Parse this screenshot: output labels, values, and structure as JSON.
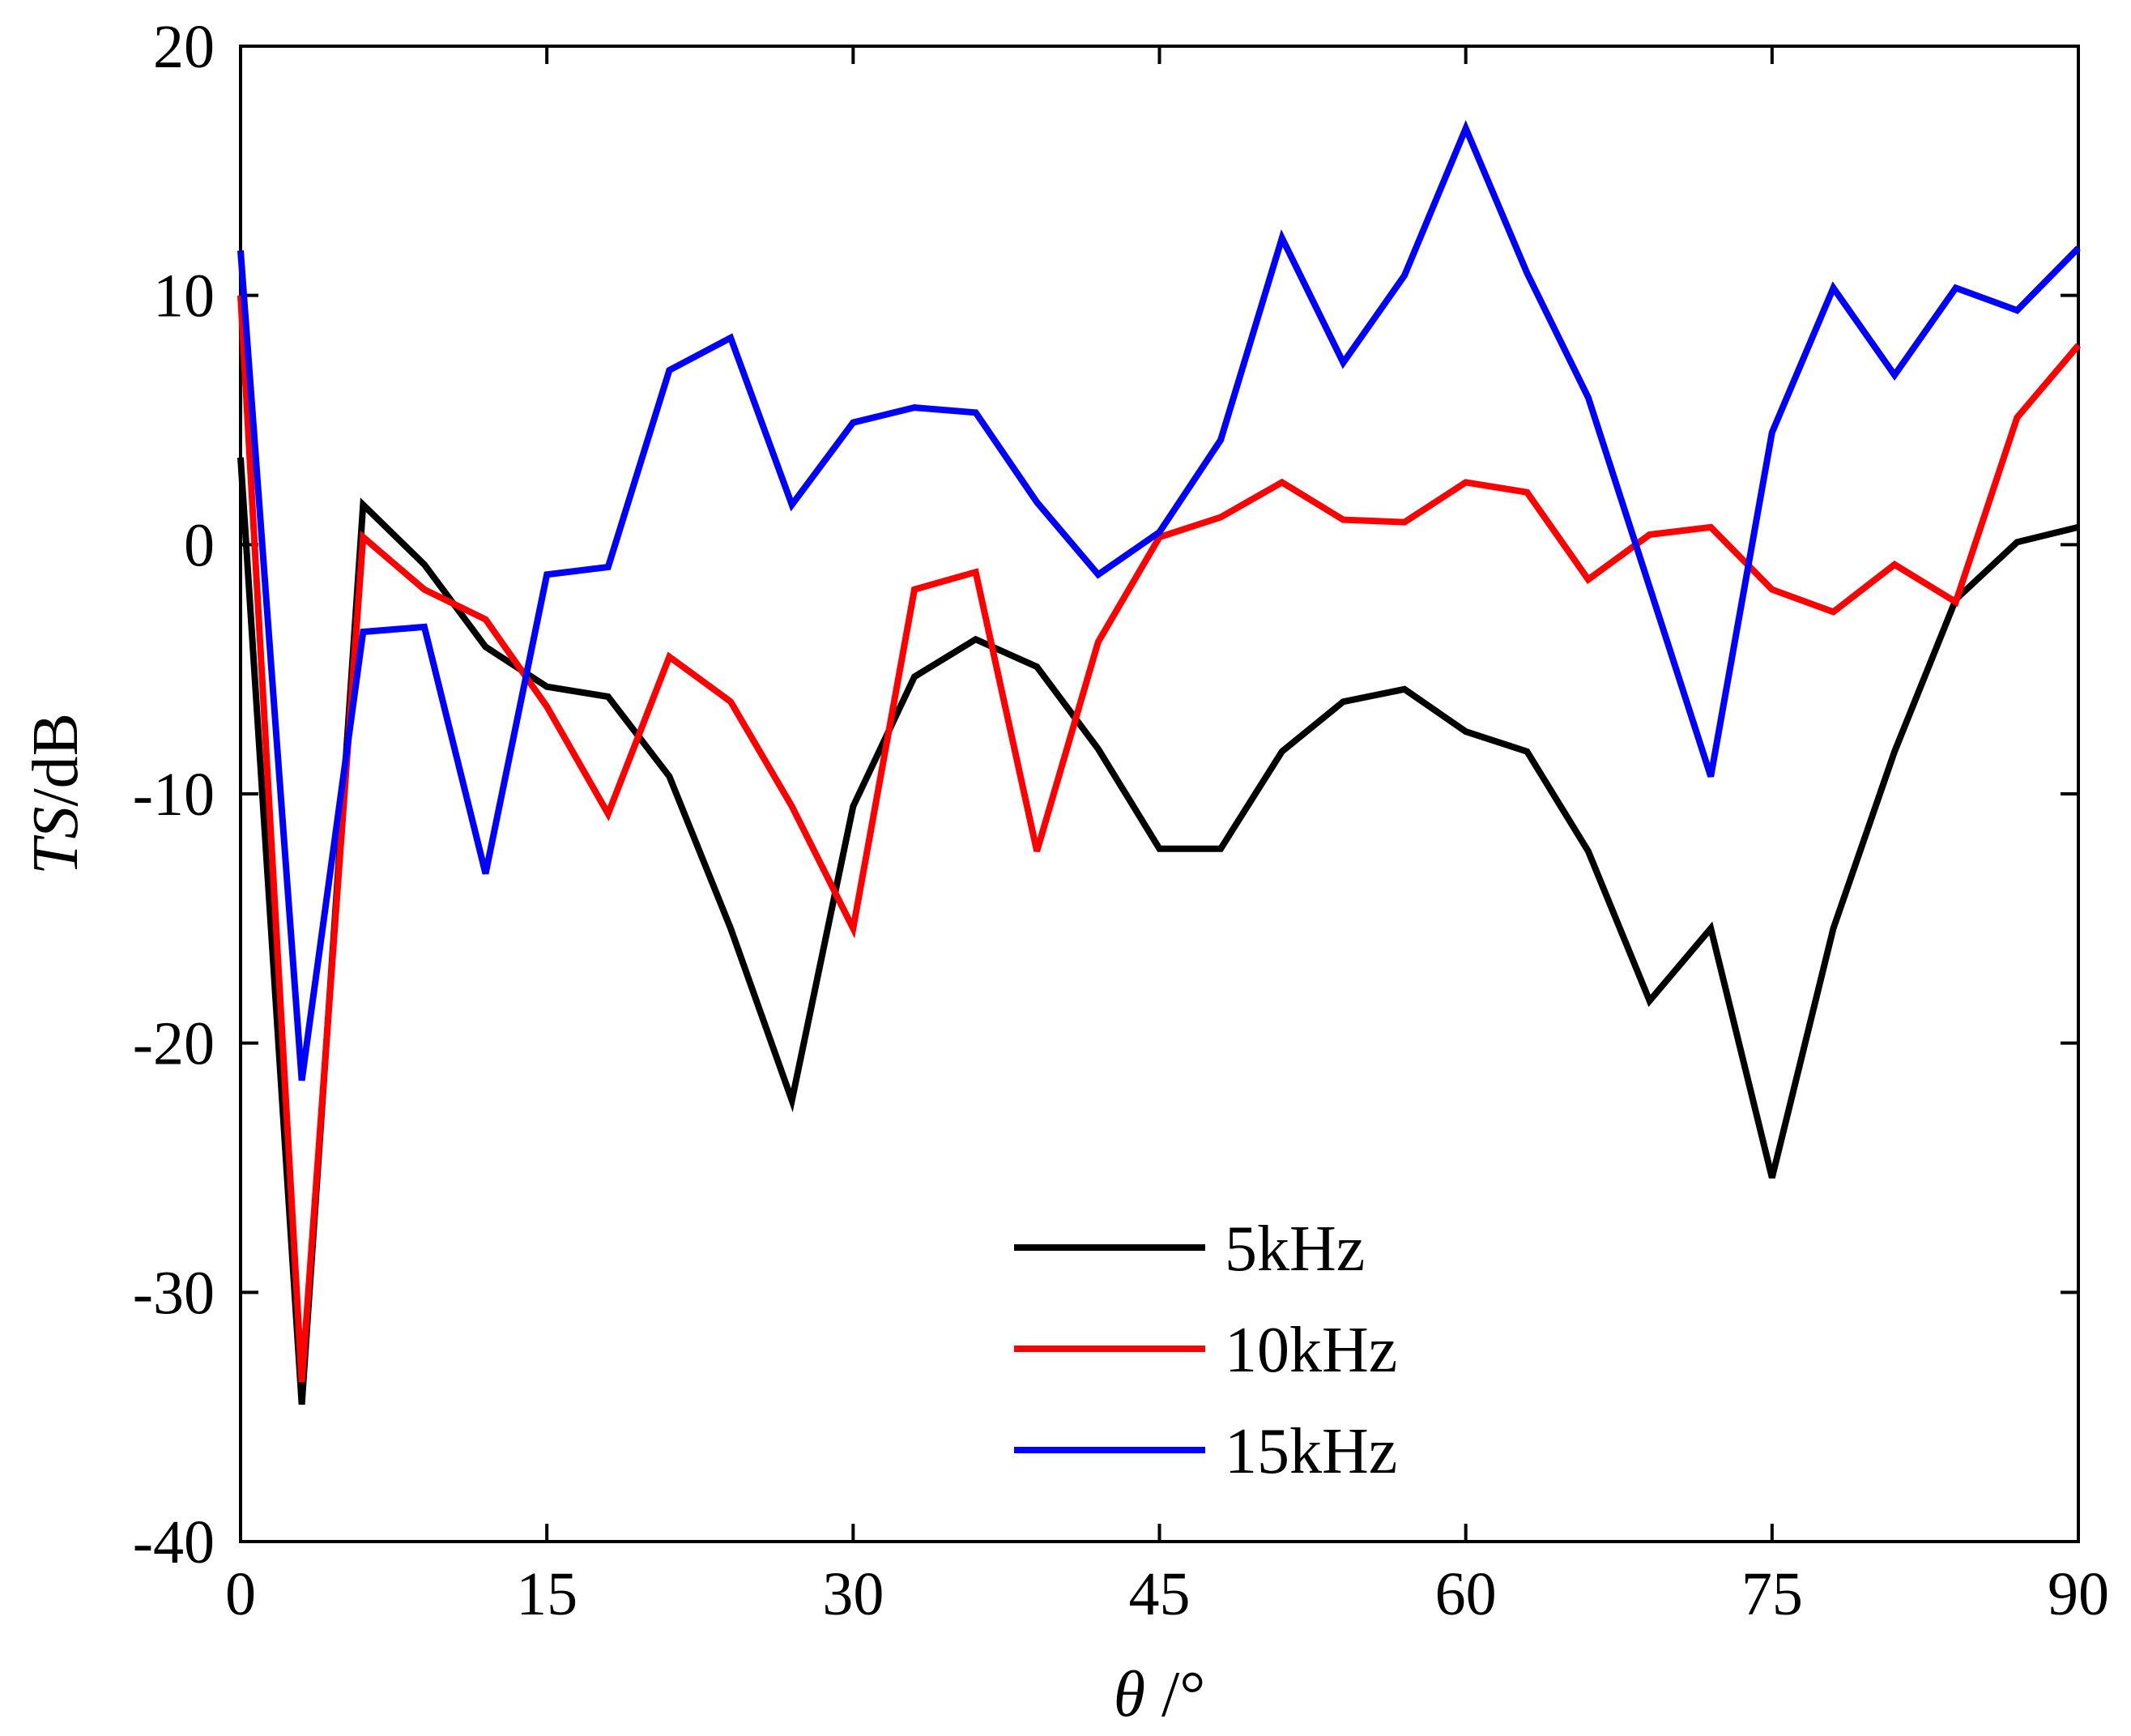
{
  "chart_data": {
    "type": "line",
    "xlabel_symbol": "θ",
    "xlabel_unit": " /°",
    "ylabel_symbol": "TS",
    "ylabel_unit": "/dB",
    "xlim": [
      0,
      90
    ],
    "ylim": [
      -40,
      20
    ],
    "xticks": [
      0,
      15,
      30,
      45,
      60,
      75,
      90
    ],
    "yticks": [
      -40,
      -30,
      -20,
      -10,
      0,
      10,
      20
    ],
    "grid": false,
    "legend_position": "bottom-center",
    "x": [
      0,
      3,
      6,
      9,
      12,
      15,
      18,
      21,
      24,
      27,
      30,
      33,
      36,
      39,
      42,
      45,
      48,
      51,
      54,
      57,
      60,
      63,
      66,
      69,
      72,
      75,
      78,
      81,
      84,
      87,
      90
    ],
    "series": [
      {
        "name": "5kHz",
        "color": "#000000",
        "values": [
          3.5,
          -34.5,
          1.6,
          -0.8,
          -4.1,
          -5.7,
          -6.1,
          -9.3,
          -15.4,
          -22.3,
          -10.5,
          -5.3,
          -3.8,
          -4.9,
          -8.2,
          -12.2,
          -12.2,
          -8.3,
          -6.3,
          -5.8,
          -7.5,
          -8.3,
          -12.3,
          -18.3,
          -15.4,
          -25.4,
          -15.4,
          -8.3,
          -2.2,
          0.1,
          0.7
        ]
      },
      {
        "name": "10kHz",
        "color": "#ff0000",
        "values": [
          10.0,
          -33.6,
          0.3,
          -1.8,
          -3.0,
          -6.5,
          -10.8,
          -4.5,
          -6.3,
          -10.5,
          -15.4,
          -1.8,
          -1.1,
          -12.3,
          -3.9,
          0.3,
          1.1,
          2.5,
          1.0,
          0.9,
          2.5,
          2.1,
          -1.4,
          0.4,
          0.7,
          -1.8,
          -2.7,
          -0.8,
          -2.3,
          5.1,
          8.0
        ]
      },
      {
        "name": "15kHz",
        "color": "#0000ff",
        "values": [
          11.8,
          -21.5,
          -3.5,
          -3.3,
          -13.2,
          -1.2,
          -0.9,
          7.0,
          8.3,
          1.6,
          4.9,
          5.5,
          5.3,
          1.7,
          -1.2,
          0.5,
          4.2,
          12.3,
          7.3,
          10.8,
          16.7,
          10.9,
          5.9,
          -1.7,
          -9.3,
          4.5,
          10.3,
          6.8,
          10.3,
          9.4,
          11.9
        ]
      }
    ]
  }
}
